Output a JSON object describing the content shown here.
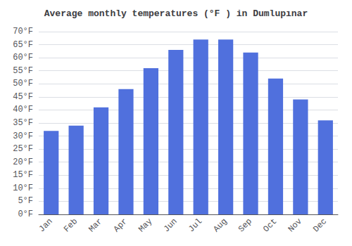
{
  "chart_data": {
    "type": "bar",
    "title": "Average monthly temperatures (°F ) in Dumlupınar",
    "categories": [
      "Jan",
      "Feb",
      "Mar",
      "Apr",
      "May",
      "Jun",
      "Jul",
      "Aug",
      "Sep",
      "Oct",
      "Nov",
      "Dec"
    ],
    "values": [
      32,
      34,
      41,
      48,
      56,
      63,
      67,
      67,
      62,
      52,
      44,
      36
    ],
    "ylim": [
      0,
      70
    ],
    "yticks": [
      {
        "value": 0,
        "label": "0°F"
      },
      {
        "value": 5,
        "label": "5°F"
      },
      {
        "value": 10,
        "label": "10°F"
      },
      {
        "value": 15,
        "label": "15°F"
      },
      {
        "value": 20,
        "label": "20°F"
      },
      {
        "value": 25,
        "label": "25°F"
      },
      {
        "value": 30,
        "label": "30°F"
      },
      {
        "value": 35,
        "label": "35°F"
      },
      {
        "value": 40,
        "label": "40°F"
      },
      {
        "value": 45,
        "label": "45°F"
      },
      {
        "value": 50,
        "label": "50°F"
      },
      {
        "value": 55,
        "label": "55°F"
      },
      {
        "value": 60,
        "label": "60°F"
      },
      {
        "value": 65,
        "label": "65°F"
      },
      {
        "value": 70,
        "label": "70°F"
      }
    ],
    "grid": true
  }
}
